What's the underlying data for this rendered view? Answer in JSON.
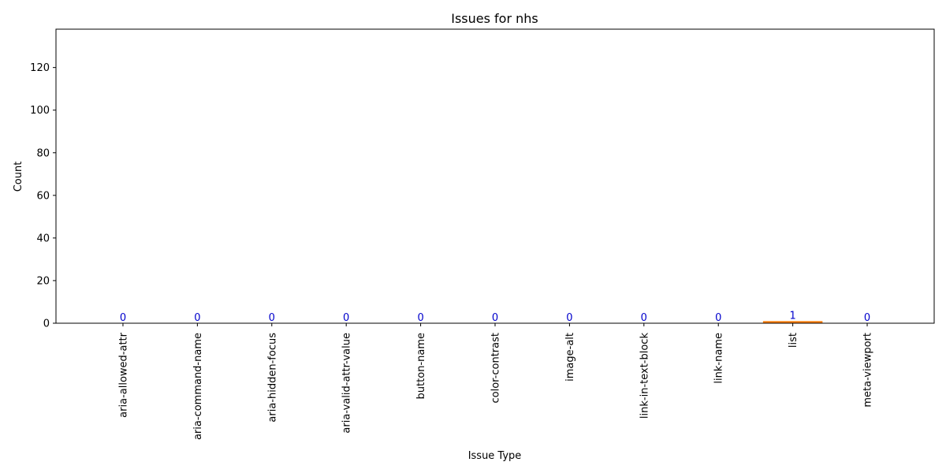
{
  "chart_data": {
    "type": "bar",
    "title": "Issues for nhs",
    "xlabel": "Issue Type",
    "ylabel": "Count",
    "categories": [
      "aria-allowed-attr",
      "aria-command-name",
      "aria-hidden-focus",
      "aria-valid-attr-value",
      "button-name",
      "color-contrast",
      "image-alt",
      "link-in-text-block",
      "link-name",
      "list",
      "meta-viewport"
    ],
    "values": [
      0,
      0,
      0,
      0,
      0,
      0,
      0,
      0,
      0,
      1,
      0
    ],
    "value_labels": [
      "0",
      "0",
      "0",
      "0",
      "0",
      "0",
      "0",
      "0",
      "0",
      "1",
      "0"
    ],
    "ylim": [
      0,
      138
    ],
    "yticks": [
      0,
      20,
      40,
      60,
      80,
      100,
      120
    ],
    "ytick_labels": [
      "0",
      "20",
      "40",
      "60",
      "80",
      "100",
      "120"
    ],
    "grid": false,
    "bar_color": "#ff7f0e",
    "value_label_color": "#0000cc",
    "tick_label_rotation": "vertical"
  }
}
